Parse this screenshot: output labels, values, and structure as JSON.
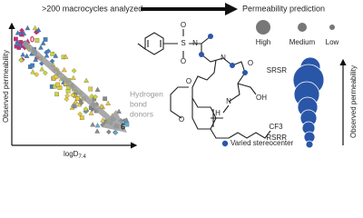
{
  "header": {
    "left_text": ">200 macrocycles analyzed",
    "right_text": "Permeability prediction"
  },
  "left_panel": {
    "y_axis_label": "Observed permeability",
    "x_axis_label": "logD",
    "x_axis_subscript": "7.4",
    "arrow_label_line1": "Hydrogen",
    "arrow_label_line2": "bond",
    "arrow_label_line3": "donors",
    "start_label": "0",
    "end_label": "6"
  },
  "molecule": {
    "atoms": [
      "S",
      "O",
      "O",
      "N",
      "N",
      "O",
      "O",
      "OH",
      "O",
      "N",
      "H",
      "CF3"
    ],
    "legend": "Varied stereocenter"
  },
  "right_panel": {
    "size_labels": [
      "High",
      "Medium",
      "Low"
    ],
    "top_label": "SRSR",
    "bottom_label": "RSRR",
    "y_axis_label": "Observed permeability"
  }
}
